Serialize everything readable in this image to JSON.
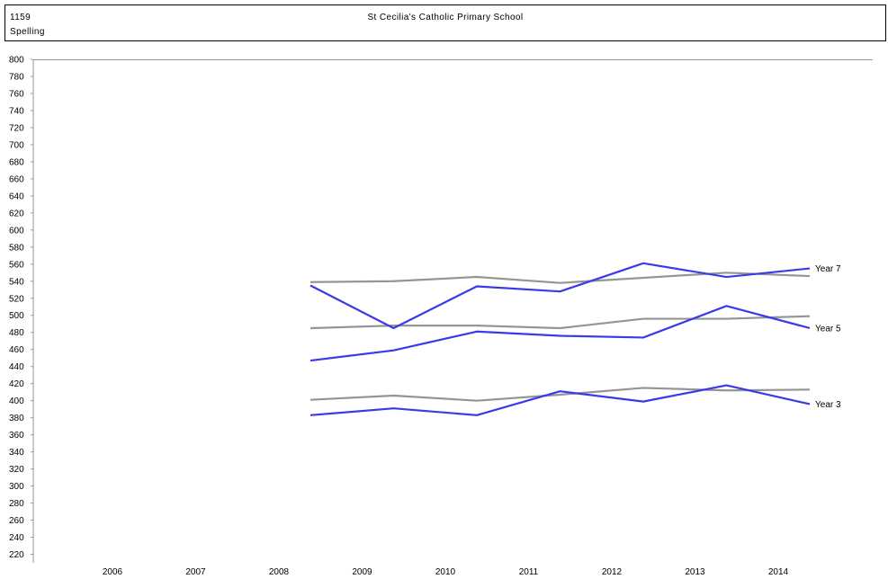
{
  "header": {
    "school_id": "1159",
    "school_name": "St Cecilia's Catholic Primary School",
    "subject": "Spelling"
  },
  "chart_data": {
    "type": "line",
    "title": "",
    "xlabel": "",
    "ylabel": "",
    "categories": [
      "2006",
      "2007",
      "2008",
      "2009",
      "2010",
      "2011",
      "2012",
      "2013",
      "2014"
    ],
    "ylim": [
      210,
      800
    ],
    "yticks": [
      220,
      240,
      260,
      280,
      300,
      320,
      340,
      360,
      380,
      400,
      420,
      440,
      460,
      480,
      500,
      520,
      540,
      560,
      580,
      600,
      620,
      640,
      660,
      680,
      700,
      720,
      740,
      760,
      780,
      800
    ],
    "grid": false,
    "colors": {
      "school": "#3a3ae8",
      "state": "#959595"
    },
    "series": [
      {
        "name": "Year 7",
        "role": "school",
        "values": [
          null,
          null,
          535,
          485,
          534,
          528,
          561,
          545,
          555
        ]
      },
      {
        "name": "",
        "role": "state",
        "values": [
          null,
          null,
          539,
          540,
          545,
          538,
          544,
          550,
          546
        ]
      },
      {
        "name": "Year 5",
        "role": "school",
        "values": [
          null,
          null,
          447,
          459,
          481,
          476,
          474,
          511,
          485
        ]
      },
      {
        "name": "",
        "role": "state",
        "values": [
          null,
          null,
          485,
          488,
          488,
          485,
          496,
          496,
          499
        ]
      },
      {
        "name": "Year 3",
        "role": "school",
        "values": [
          null,
          null,
          383,
          391,
          383,
          411,
          399,
          418,
          396
        ]
      },
      {
        "name": "",
        "role": "state",
        "values": [
          null,
          null,
          401,
          406,
          400,
          407,
          415,
          412,
          413
        ]
      }
    ]
  }
}
